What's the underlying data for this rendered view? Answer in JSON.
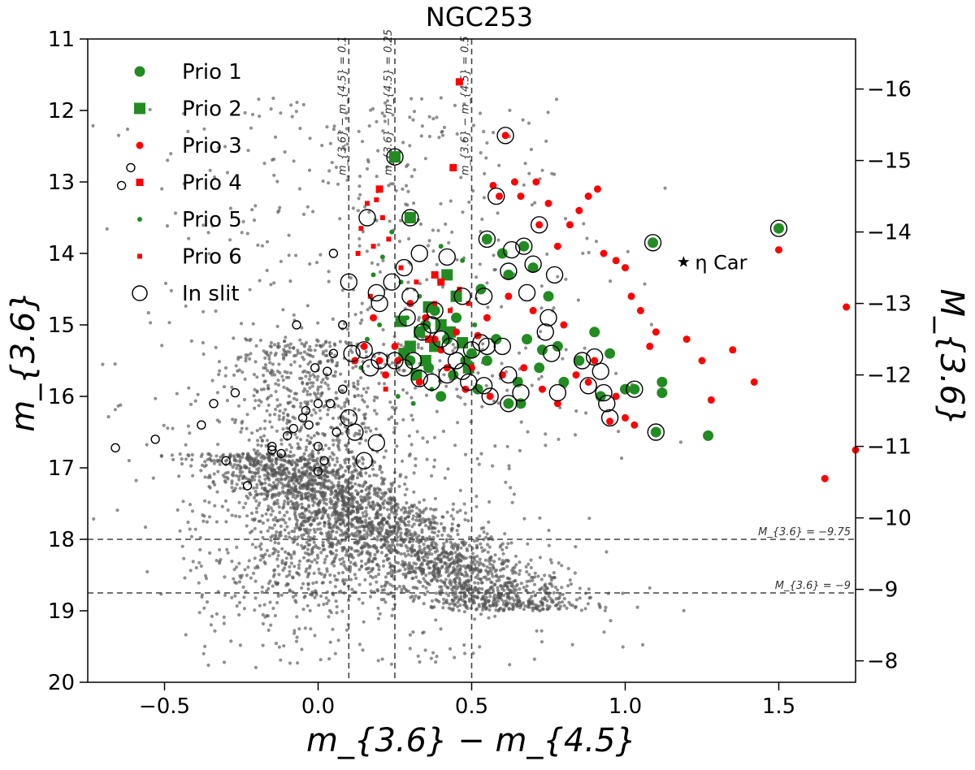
{
  "chart_data": {
    "type": "scatter",
    "title": "NGC253",
    "xlabel": "m_{3.6} − m_{4.5}",
    "ylabel_left": "m_{3.6}",
    "ylabel_right": "M_{3.6}",
    "xlim": [
      -0.75,
      1.75
    ],
    "ylim_left": [
      11,
      20
    ],
    "ylim_right_at_bottom": -7.7,
    "right_axis_offset": -27.7,
    "left_y_inverted": true,
    "x_ticks": [
      -0.5,
      0.0,
      0.5,
      1.0,
      1.5
    ],
    "x_tick_labels": [
      "−0.5",
      "0.0",
      "0.5",
      "1.0",
      "1.5"
    ],
    "y_left_ticks": [
      11,
      12,
      13,
      14,
      15,
      16,
      17,
      18,
      19,
      20
    ],
    "y_left_tick_labels": [
      "11",
      "12",
      "13",
      "14",
      "15",
      "16",
      "17",
      "18",
      "19",
      "20"
    ],
    "y_right_ticks": [
      -16,
      -15,
      -14,
      -13,
      -12,
      -11,
      -10,
      -9,
      -8
    ],
    "y_right_tick_labels": [
      "−16",
      "−15",
      "−14",
      "−13",
      "−12",
      "−11",
      "−10",
      "−9",
      "−8"
    ],
    "vertical_lines": [
      {
        "x": 0.1,
        "label": "m_{3.6} − m_{4.5} = 0.1"
      },
      {
        "x": 0.25,
        "label": "m_{3.6} − m_{4.5} = 0.25"
      },
      {
        "x": 0.5,
        "label": "m_{3.6} − m_{4.5} = 0.5"
      }
    ],
    "horizontal_lines": [
      {
        "y": 18.0,
        "label": "M_{3.6} = −9.75"
      },
      {
        "y": 18.75,
        "label": "M_{3.6} = −9"
      }
    ],
    "marker_annotation": {
      "text": "η Car",
      "x": 1.19,
      "y": 14.12
    },
    "legend": {
      "position": "upper-left",
      "entries": [
        {
          "label": "Prio 1",
          "marker": "circle-large",
          "color": "#228b22"
        },
        {
          "label": "Prio 2",
          "marker": "square-large",
          "color": "#228b22"
        },
        {
          "label": "Prio 3",
          "marker": "circle",
          "color": "#ff0000"
        },
        {
          "label": "Prio 4",
          "marker": "square",
          "color": "#ff0000"
        },
        {
          "label": "Prio 5",
          "marker": "circle-small",
          "color": "#228b22"
        },
        {
          "label": "Prio 6",
          "marker": "square-small",
          "color": "#ff0000"
        },
        {
          "label": "In slit",
          "marker": "open-circle",
          "color": "#000000"
        }
      ]
    },
    "colors": {
      "background_points": "#555555",
      "green": "#228b22",
      "red": "#ff0000",
      "line": "#444444"
    },
    "series": [
      {
        "name": "Prio 1",
        "points": [
          [
            0.3,
            15.5
          ],
          [
            0.35,
            15.0
          ],
          [
            0.38,
            14.8
          ],
          [
            0.42,
            15.2
          ],
          [
            0.45,
            14.9
          ],
          [
            0.5,
            15.4
          ],
          [
            0.55,
            15.5
          ],
          [
            0.6,
            14.0
          ],
          [
            0.62,
            14.3
          ],
          [
            0.65,
            15.8
          ],
          [
            0.68,
            15.2
          ],
          [
            0.7,
            14.2
          ],
          [
            0.72,
            15.6
          ],
          [
            0.75,
            14.6
          ],
          [
            0.8,
            15.8
          ],
          [
            0.85,
            15.5
          ],
          [
            0.9,
            15.1
          ],
          [
            0.92,
            16.0
          ],
          [
            0.95,
            15.4
          ],
          [
            1.0,
            15.9
          ],
          [
            1.03,
            15.9
          ],
          [
            1.09,
            13.85
          ],
          [
            1.1,
            16.5
          ],
          [
            1.12,
            15.8
          ],
          [
            1.12,
            15.95
          ],
          [
            1.27,
            16.55
          ],
          [
            1.5,
            13.65
          ],
          [
            0.53,
            14.5
          ],
          [
            0.58,
            15.2
          ],
          [
            0.67,
            13.9
          ],
          [
            0.73,
            15.35
          ],
          [
            0.62,
            16.1
          ],
          [
            0.66,
            16.1
          ],
          [
            0.78,
            15.3
          ],
          [
            0.55,
            13.8
          ],
          [
            0.4,
            16.0
          ],
          [
            0.36,
            15.6
          ],
          [
            0.44,
            15.7
          ],
          [
            0.52,
            15.9
          ],
          [
            0.48,
            15.5
          ]
        ]
      },
      {
        "name": "Prio 2",
        "points": [
          [
            0.25,
            12.65
          ],
          [
            0.3,
            13.5
          ],
          [
            0.27,
            14.95
          ],
          [
            0.3,
            15.3
          ],
          [
            0.33,
            15.1
          ],
          [
            0.35,
            15.5
          ],
          [
            0.38,
            15.3
          ],
          [
            0.4,
            15.0
          ],
          [
            0.43,
            15.1
          ],
          [
            0.45,
            14.6
          ],
          [
            0.47,
            15.25
          ],
          [
            0.49,
            15.6
          ],
          [
            0.32,
            15.7
          ],
          [
            0.28,
            15.4
          ],
          [
            0.36,
            14.75
          ],
          [
            0.42,
            14.3
          ]
        ]
      },
      {
        "name": "Prio 3",
        "points": [
          [
            0.61,
            12.35
          ],
          [
            0.57,
            13.05
          ],
          [
            0.59,
            13.2
          ],
          [
            0.64,
            13.0
          ],
          [
            0.66,
            13.2
          ],
          [
            0.71,
            13.0
          ],
          [
            0.75,
            13.3
          ],
          [
            0.72,
            13.6
          ],
          [
            0.78,
            13.9
          ],
          [
            0.82,
            13.6
          ],
          [
            0.88,
            13.2
          ],
          [
            0.91,
            13.1
          ],
          [
            0.85,
            13.4
          ],
          [
            0.93,
            14.0
          ],
          [
            0.97,
            14.1
          ],
          [
            1.0,
            14.2
          ],
          [
            1.02,
            14.6
          ],
          [
            1.05,
            14.8
          ],
          [
            1.1,
            15.1
          ],
          [
            1.2,
            15.2
          ],
          [
            1.25,
            15.5
          ],
          [
            1.35,
            15.35
          ],
          [
            1.42,
            15.8
          ],
          [
            1.5,
            13.95
          ],
          [
            1.72,
            14.75
          ],
          [
            1.75,
            16.75
          ],
          [
            1.65,
            17.15
          ],
          [
            1.28,
            16.05
          ],
          [
            1.0,
            16.3
          ],
          [
            0.95,
            16.35
          ],
          [
            0.88,
            15.8
          ],
          [
            0.8,
            15.0
          ],
          [
            0.7,
            14.8
          ],
          [
            0.62,
            14.6
          ],
          [
            0.55,
            14.9
          ],
          [
            0.52,
            15.15
          ],
          [
            0.5,
            15.6
          ],
          [
            0.45,
            15.1
          ],
          [
            0.4,
            15.35
          ],
          [
            0.35,
            14.9
          ],
          [
            0.3,
            14.7
          ],
          [
            0.25,
            15.3
          ],
          [
            0.2,
            15.5
          ],
          [
            0.15,
            15.3
          ],
          [
            0.12,
            15.5
          ],
          [
            0.18,
            14.9
          ],
          [
            0.22,
            15.7
          ],
          [
            0.26,
            15.5
          ],
          [
            0.33,
            15.8
          ],
          [
            0.38,
            15.2
          ],
          [
            0.42,
            15.6
          ],
          [
            0.48,
            15.9
          ],
          [
            0.56,
            16.0
          ],
          [
            0.6,
            15.7
          ],
          [
            0.67,
            15.6
          ],
          [
            0.73,
            15.9
          ],
          [
            0.78,
            16.1
          ],
          [
            0.84,
            15.7
          ],
          [
            0.9,
            15.5
          ],
          [
            0.97,
            16.0
          ],
          [
            1.03,
            16.4
          ],
          [
            1.08,
            15.3
          ]
        ]
      },
      {
        "name": "Prio 4",
        "points": [
          [
            0.46,
            11.6
          ],
          [
            0.44,
            12.8
          ],
          [
            0.2,
            13.1
          ],
          [
            0.38,
            14.3
          ],
          [
            0.4,
            14.4
          ],
          [
            0.36,
            15.2
          ]
        ]
      },
      {
        "name": "Prio 5",
        "points": [
          [
            0.14,
            15.6
          ],
          [
            0.18,
            14.3
          ],
          [
            0.21,
            14.05
          ],
          [
            0.24,
            13.7
          ],
          [
            0.27,
            14.4
          ],
          [
            0.16,
            15.2
          ],
          [
            0.2,
            15.0
          ],
          [
            0.29,
            14.9
          ],
          [
            0.33,
            14.6
          ],
          [
            0.4,
            13.9
          ],
          [
            0.47,
            14.1
          ],
          [
            0.51,
            15.0
          ],
          [
            0.55,
            15.5
          ],
          [
            0.26,
            16.0
          ],
          [
            0.31,
            16.1
          ],
          [
            0.37,
            15.9
          ]
        ]
      },
      {
        "name": "Prio 6",
        "points": [
          [
            0.16,
            13.3
          ],
          [
            0.19,
            13.25
          ],
          [
            0.14,
            13.65
          ],
          [
            0.18,
            13.9
          ],
          [
            0.21,
            13.5
          ],
          [
            0.23,
            13.8
          ],
          [
            0.13,
            14.0
          ],
          [
            0.17,
            14.6
          ],
          [
            0.22,
            15.9
          ],
          [
            0.27,
            14.2
          ],
          [
            0.32,
            14.4
          ],
          [
            0.38,
            14.7
          ],
          [
            0.43,
            14.8
          ],
          [
            0.46,
            14.5
          ],
          [
            0.49,
            14.7
          ]
        ]
      },
      {
        "name": "In slit",
        "points": [
          [
            0.25,
            12.65
          ],
          [
            0.61,
            12.35
          ],
          [
            0.58,
            13.2
          ],
          [
            0.3,
            13.5
          ],
          [
            0.72,
            13.6
          ],
          [
            1.09,
            13.85
          ],
          [
            1.5,
            13.65
          ],
          [
            0.55,
            13.8
          ],
          [
            0.63,
            13.95
          ],
          [
            0.67,
            13.9
          ],
          [
            0.7,
            14.15
          ],
          [
            0.77,
            14.3
          ],
          [
            0.42,
            14.05
          ],
          [
            0.33,
            14.0
          ],
          [
            0.28,
            14.2
          ],
          [
            0.24,
            14.4
          ],
          [
            0.1,
            14.4
          ],
          [
            0.19,
            14.55
          ],
          [
            0.2,
            14.7
          ],
          [
            0.3,
            14.6
          ],
          [
            0.38,
            14.8
          ],
          [
            0.47,
            14.6
          ],
          [
            0.54,
            14.6
          ],
          [
            0.62,
            14.25
          ],
          [
            0.68,
            14.55
          ],
          [
            0.75,
            14.9
          ],
          [
            0.29,
            14.9
          ],
          [
            0.34,
            15.1
          ],
          [
            0.4,
            15.2
          ],
          [
            0.43,
            15.3
          ],
          [
            0.37,
            15.0
          ],
          [
            0.45,
            15.5
          ],
          [
            0.5,
            15.35
          ],
          [
            0.55,
            15.3
          ],
          [
            0.6,
            15.3
          ],
          [
            0.53,
            15.25
          ],
          [
            0.25,
            15.5
          ],
          [
            0.2,
            15.5
          ],
          [
            0.15,
            15.35
          ],
          [
            0.11,
            15.4
          ],
          [
            0.17,
            15.6
          ],
          [
            0.33,
            15.75
          ],
          [
            0.37,
            15.8
          ],
          [
            0.42,
            15.7
          ],
          [
            0.49,
            15.8
          ],
          [
            0.54,
            15.85
          ],
          [
            0.56,
            16.0
          ],
          [
            0.62,
            15.7
          ],
          [
            0.66,
            15.95
          ],
          [
            0.62,
            16.1
          ],
          [
            0.78,
            15.95
          ],
          [
            0.76,
            15.4
          ],
          [
            0.86,
            15.5
          ],
          [
            0.88,
            15.85
          ],
          [
            0.9,
            15.45
          ],
          [
            0.92,
            15.65
          ],
          [
            0.93,
            15.95
          ],
          [
            0.94,
            16.1
          ],
          [
            0.95,
            16.3
          ],
          [
            1.03,
            15.9
          ],
          [
            1.1,
            16.5
          ],
          [
            0.74,
            15.1
          ],
          [
            0.31,
            15.5
          ],
          [
            0.28,
            15.6
          ],
          [
            0.47,
            15.65
          ],
          [
            -0.66,
            16.72
          ],
          [
            -0.53,
            16.6
          ],
          [
            -0.38,
            16.4
          ],
          [
            -0.34,
            16.1
          ],
          [
            -0.27,
            15.95
          ],
          [
            -0.23,
            17.25
          ],
          [
            -0.3,
            16.9
          ],
          [
            -0.15,
            16.7
          ],
          [
            -0.1,
            16.55
          ],
          [
            -0.08,
            16.45
          ],
          [
            -0.05,
            16.3
          ],
          [
            -0.03,
            16.4
          ],
          [
            0.0,
            16.7
          ],
          [
            0.02,
            16.9
          ],
          [
            0.06,
            16.5
          ],
          [
            -0.01,
            15.6
          ],
          [
            0.03,
            15.65
          ],
          [
            0.05,
            15.4
          ],
          [
            0.08,
            15.0
          ],
          [
            0.1,
            16.3
          ],
          [
            0.12,
            16.5
          ],
          [
            0.15,
            16.9
          ],
          [
            0.19,
            16.65
          ],
          [
            -0.04,
            16.2
          ],
          [
            0.0,
            16.1
          ],
          [
            0.04,
            16.1
          ],
          [
            0.08,
            15.9
          ],
          [
            -0.61,
            12.8
          ],
          [
            -0.64,
            13.05
          ],
          [
            0.16,
            13.5
          ],
          [
            -0.07,
            15.0
          ],
          [
            0.05,
            14.0
          ],
          [
            -0.15,
            16.75
          ],
          [
            -0.12,
            16.8
          ],
          [
            0.0,
            17.05
          ]
        ]
      }
    ]
  }
}
